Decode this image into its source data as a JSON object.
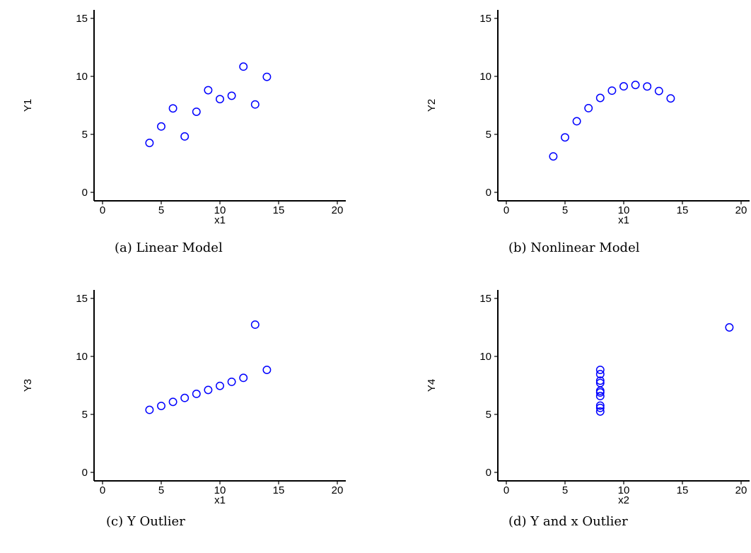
{
  "chart_data": [
    {
      "type": "scatter",
      "caption": "(a) Linear Model",
      "xlabel": "x1",
      "ylabel": "Y1",
      "xlim": [
        0,
        20
      ],
      "ylim": [
        0,
        15
      ],
      "xticks": [
        0,
        5,
        10,
        15,
        20
      ],
      "yticks": [
        0,
        5,
        10,
        15
      ],
      "grid": false,
      "marker_color": "#0000ff",
      "x": [
        4,
        5,
        6,
        7,
        8,
        9,
        10,
        11,
        12,
        13,
        14
      ],
      "y": [
        4.26,
        5.68,
        7.24,
        4.82,
        6.95,
        8.81,
        8.04,
        8.33,
        10.84,
        7.58,
        9.96
      ]
    },
    {
      "type": "scatter",
      "caption": "(b) Nonlinear Model",
      "xlabel": "x1",
      "ylabel": "Y2",
      "xlim": [
        0,
        20
      ],
      "ylim": [
        0,
        15
      ],
      "xticks": [
        0,
        5,
        10,
        15,
        20
      ],
      "yticks": [
        0,
        5,
        10,
        15
      ],
      "grid": false,
      "marker_color": "#0000ff",
      "x": [
        4,
        5,
        6,
        7,
        8,
        9,
        10,
        11,
        12,
        13,
        14
      ],
      "y": [
        3.1,
        4.74,
        6.13,
        7.26,
        8.14,
        8.77,
        9.14,
        9.26,
        9.13,
        8.74,
        8.1
      ]
    },
    {
      "type": "scatter",
      "caption": "(c) Y Outlier",
      "xlabel": "x1",
      "ylabel": "Y3",
      "xlim": [
        0,
        20
      ],
      "ylim": [
        0,
        15
      ],
      "xticks": [
        0,
        5,
        10,
        15,
        20
      ],
      "yticks": [
        0,
        5,
        10,
        15
      ],
      "grid": false,
      "marker_color": "#0000ff",
      "x": [
        4,
        5,
        6,
        7,
        8,
        9,
        10,
        11,
        12,
        13,
        14
      ],
      "y": [
        5.39,
        5.73,
        6.08,
        6.42,
        6.77,
        7.11,
        7.46,
        7.81,
        8.15,
        12.74,
        8.84
      ]
    },
    {
      "type": "scatter",
      "caption": "(d) Y and x Outlier",
      "xlabel": "x2",
      "ylabel": "Y4",
      "xlim": [
        0,
        20
      ],
      "ylim": [
        0,
        15
      ],
      "xticks": [
        0,
        5,
        10,
        15,
        20
      ],
      "yticks": [
        0,
        5,
        10,
        15
      ],
      "grid": false,
      "marker_color": "#0000ff",
      "x": [
        8,
        8,
        8,
        8,
        8,
        8,
        8,
        19,
        8,
        8,
        8
      ],
      "y": [
        6.58,
        5.76,
        7.71,
        8.84,
        8.47,
        7.04,
        5.25,
        12.5,
        5.56,
        7.91,
        6.89
      ]
    }
  ]
}
